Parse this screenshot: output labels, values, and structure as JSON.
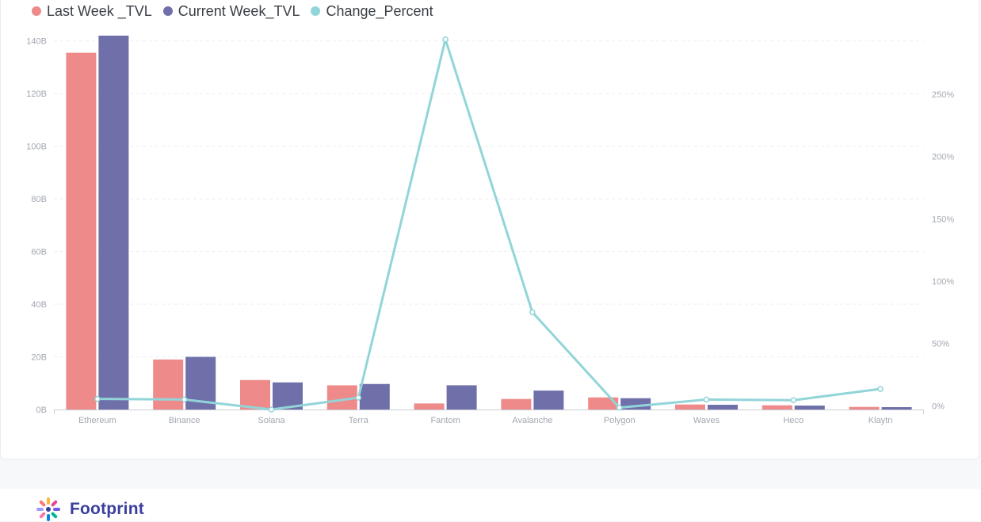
{
  "chart_data": {
    "type": "bar",
    "categories": [
      "Ethereum",
      "Binance",
      "Solana",
      "Terra",
      "Fantom",
      "Avalanche",
      "Polygon",
      "Waves",
      "Heco",
      "Klaytn"
    ],
    "series": [
      {
        "name": "Last Week _TVL",
        "kind": "bar",
        "axis": "left",
        "color": "#ee8b8a",
        "values": [
          135.5,
          19.0,
          11.2,
          9.2,
          2.3,
          4.0,
          4.6,
          1.9,
          1.6,
          1.0
        ]
      },
      {
        "name": "Current Week_TVL",
        "kind": "bar",
        "axis": "left",
        "color": "#6f70aa",
        "values": [
          142.0,
          20.0,
          10.3,
          9.7,
          9.2,
          7.2,
          4.3,
          1.8,
          1.5,
          0.9
        ]
      },
      {
        "name": "Change_Percent",
        "kind": "line",
        "axis": "right",
        "color": "#92d5d9",
        "values": [
          5.5,
          5,
          -3,
          6.5,
          294,
          75,
          -1.5,
          5,
          4.5,
          13.5
        ]
      }
    ],
    "left_axis": {
      "ticks": [
        "0B",
        "20B",
        "40B",
        "60B",
        "80B",
        "100B",
        "120B",
        "140B"
      ],
      "tick_values": [
        0,
        20,
        40,
        60,
        80,
        100,
        120,
        140
      ],
      "ylim": [
        0,
        142
      ]
    },
    "right_axis": {
      "ticks": [
        "0%",
        "50%",
        "100%",
        "150%",
        "200%",
        "250%"
      ],
      "tick_values": [
        0,
        50,
        100,
        150,
        200,
        250
      ],
      "ylim": [
        -3,
        297
      ]
    },
    "grid": true,
    "legend_position": "top-left"
  },
  "legend": [
    {
      "label": "Last Week _TVL",
      "color": "#ee8b8a"
    },
    {
      "label": "Current Week_TVL",
      "color": "#6f70aa"
    },
    {
      "label": "Change_Percent",
      "color": "#92d5d9"
    }
  ],
  "brand": {
    "name": "Footprint"
  }
}
